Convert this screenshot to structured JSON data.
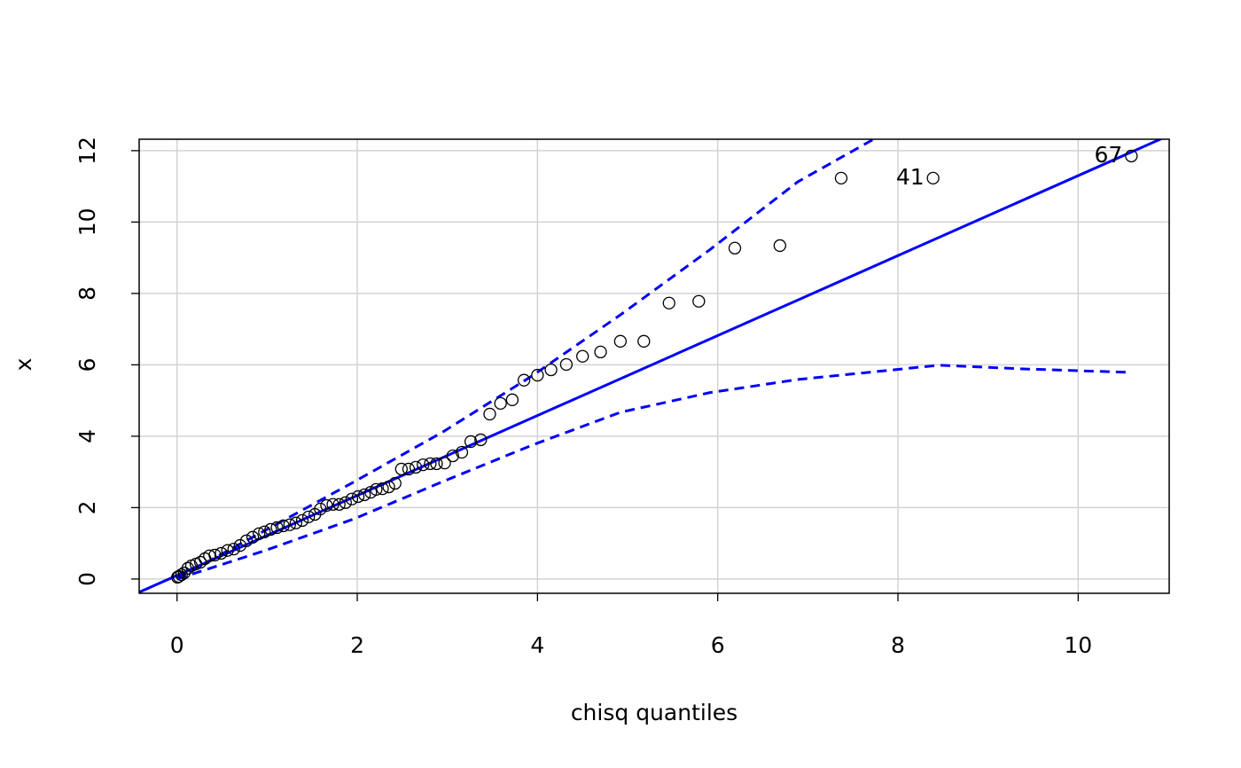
{
  "chart_data": {
    "type": "scatter",
    "xlabel": "chisq quantiles",
    "ylabel": "x",
    "xlim": [
      -0.42,
      11.01
    ],
    "ylim": [
      -0.4,
      12.32
    ],
    "xticks": [
      0,
      2,
      4,
      6,
      8,
      10
    ],
    "yticks": [
      0,
      2,
      4,
      6,
      8,
      10,
      12
    ],
    "grid": true,
    "grid_color": "#d3d3d3",
    "series": [
      {
        "color": "#000000",
        "x": [
          0.005,
          0.02,
          0.05,
          0.08,
          0.12,
          0.16,
          0.21,
          0.26,
          0.31,
          0.36,
          0.42,
          0.49,
          0.56,
          0.63,
          0.7,
          0.77,
          0.84,
          0.91,
          0.97,
          1.04,
          1.11,
          1.18,
          1.25,
          1.32,
          1.39,
          1.46,
          1.53,
          1.59,
          1.66,
          1.73,
          1.8,
          1.87,
          1.94,
          2.01,
          2.08,
          2.15,
          2.21,
          2.28,
          2.35,
          2.42,
          2.49,
          2.57,
          2.65,
          2.73,
          2.81,
          2.88,
          2.97,
          3.06,
          3.16,
          3.26,
          3.37,
          3.47,
          3.59,
          3.72,
          3.85,
          4.0,
          4.15,
          4.32,
          4.5,
          4.7,
          4.92,
          5.18,
          5.46,
          5.79,
          6.19,
          6.69,
          7.37,
          8.39,
          10.59
        ],
        "values": [
          0.05,
          0.07,
          0.12,
          0.17,
          0.3,
          0.37,
          0.42,
          0.47,
          0.57,
          0.65,
          0.67,
          0.72,
          0.8,
          0.84,
          0.94,
          1.07,
          1.17,
          1.27,
          1.32,
          1.39,
          1.44,
          1.49,
          1.52,
          1.57,
          1.64,
          1.74,
          1.81,
          1.96,
          2.06,
          2.09,
          2.09,
          2.14,
          2.24,
          2.31,
          2.36,
          2.43,
          2.51,
          2.53,
          2.58,
          2.68,
          3.08,
          3.08,
          3.13,
          3.2,
          3.23,
          3.23,
          3.25,
          3.45,
          3.55,
          3.85,
          3.9,
          4.62,
          4.92,
          5.02,
          5.57,
          5.71,
          5.86,
          6.01,
          6.24,
          6.36,
          6.66,
          6.66,
          7.73,
          7.78,
          9.27,
          9.34,
          11.23,
          11.23,
          11.85
        ],
        "labels": [
          null,
          null,
          null,
          null,
          null,
          null,
          null,
          null,
          null,
          null,
          null,
          null,
          null,
          null,
          null,
          null,
          null,
          null,
          null,
          null,
          null,
          null,
          null,
          null,
          null,
          null,
          null,
          null,
          null,
          null,
          null,
          null,
          null,
          null,
          null,
          null,
          null,
          null,
          null,
          null,
          null,
          null,
          null,
          null,
          null,
          null,
          null,
          null,
          null,
          null,
          null,
          null,
          null,
          null,
          null,
          null,
          null,
          null,
          null,
          null,
          null,
          null,
          null,
          null,
          null,
          null,
          null,
          "41",
          "67"
        ]
      }
    ],
    "reference_line": {
      "color": "#0000ff",
      "intercept": 0.1,
      "slope": 1.12
    },
    "envelope": [
      {
        "color": "#0000ff",
        "x": [
          0,
          0.89,
          1.97,
          2.95,
          3.94,
          4.92,
          5.91,
          6.89,
          7.73
        ],
        "values": [
          0.02,
          1.24,
          2.73,
          4.12,
          5.69,
          7.4,
          9.22,
          11.13,
          12.32
        ]
      },
      {
        "color": "#0000ff",
        "x": [
          0,
          0.98,
          1.97,
          2.95,
          3.94,
          4.92,
          5.91,
          6.89,
          7.87,
          8.46,
          9.35,
          10.55
        ],
        "values": [
          0,
          0.8,
          1.69,
          2.73,
          3.75,
          4.67,
          5.22,
          5.59,
          5.84,
          5.99,
          5.89,
          5.79
        ]
      }
    ]
  }
}
